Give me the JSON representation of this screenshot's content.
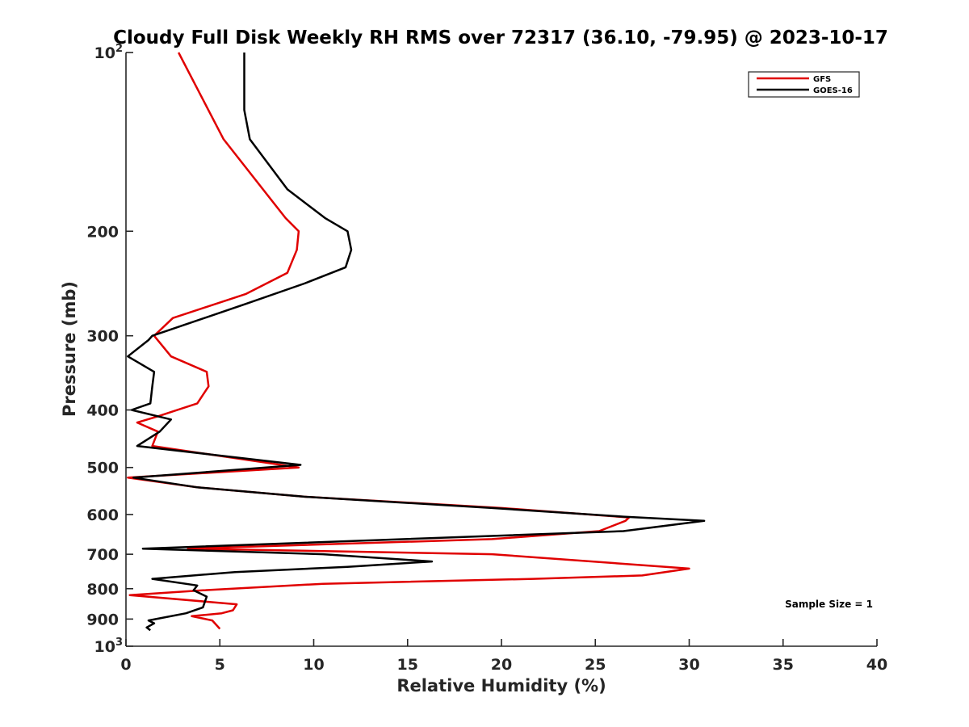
{
  "chart_data": {
    "type": "line",
    "title": "Cloudy Full Disk Weekly RH RMS over 72317 (36.10, -79.95) @ 2023-10-17",
    "xlabel": "Relative Humidity (%)",
    "ylabel": "Pressure (mb)",
    "xlim": [
      0,
      40
    ],
    "ylim": [
      100,
      1000
    ],
    "yscale": "log",
    "y_reversed": true,
    "grid": false,
    "legend_position": "top-right",
    "x_ticks": [
      0,
      5,
      10,
      15,
      20,
      25,
      30,
      35,
      40
    ],
    "x_tick_labels": [
      "0",
      "5",
      "10",
      "15",
      "20",
      "25",
      "30",
      "35",
      "40"
    ],
    "y_ticks": [
      {
        "value": 100,
        "base": "10",
        "exp": "2"
      },
      {
        "value": 200,
        "label": "200"
      },
      {
        "value": 300,
        "label": "300"
      },
      {
        "value": 400,
        "label": "400"
      },
      {
        "value": 500,
        "label": "500"
      },
      {
        "value": 600,
        "label": "600"
      },
      {
        "value": 700,
        "label": "700"
      },
      {
        "value": 800,
        "label": "800"
      },
      {
        "value": 900,
        "label": "900"
      },
      {
        "value": 1000,
        "base": "10",
        "exp": "3"
      }
    ],
    "series": [
      {
        "name": "GFS",
        "color": "#e00000",
        "points": [
          [
            2.8,
            100
          ],
          [
            4.1,
            120
          ],
          [
            5.2,
            140
          ],
          [
            8.5,
            190
          ],
          [
            9.2,
            200
          ],
          [
            9.1,
            215
          ],
          [
            8.6,
            235
          ],
          [
            6.4,
            255
          ],
          [
            2.5,
            280
          ],
          [
            1.5,
            300
          ],
          [
            2.4,
            325
          ],
          [
            4.3,
            345
          ],
          [
            4.4,
            365
          ],
          [
            3.8,
            390
          ],
          [
            1.7,
            410
          ],
          [
            0.6,
            420
          ],
          [
            1.7,
            435
          ],
          [
            1.4,
            460
          ],
          [
            9.2,
            500
          ],
          [
            0.1,
            520
          ],
          [
            3.8,
            540
          ],
          [
            9.5,
            560
          ],
          [
            20.0,
            585
          ],
          [
            26.8,
            607
          ],
          [
            26.6,
            615
          ],
          [
            25.2,
            640
          ],
          [
            19.5,
            660
          ],
          [
            3.3,
            685
          ],
          [
            19.5,
            700
          ],
          [
            30.0,
            740
          ],
          [
            27.5,
            760
          ],
          [
            21.7,
            770
          ],
          [
            10.5,
            785
          ],
          [
            4.1,
            805
          ],
          [
            0.2,
            820
          ],
          [
            5.9,
            850
          ],
          [
            5.7,
            870
          ],
          [
            5.1,
            880
          ],
          [
            3.5,
            890
          ],
          [
            4.6,
            905
          ],
          [
            5.0,
            935
          ]
        ]
      },
      {
        "name": "GOES-16",
        "color": "#000000",
        "points": [
          [
            6.3,
            100
          ],
          [
            6.3,
            125
          ],
          [
            6.6,
            140
          ],
          [
            8.6,
            170
          ],
          [
            10.6,
            190
          ],
          [
            11.8,
            200
          ],
          [
            12.0,
            215
          ],
          [
            11.7,
            230
          ],
          [
            9.5,
            245
          ],
          [
            6.4,
            265
          ],
          [
            1.4,
            300
          ],
          [
            1.2,
            305
          ],
          [
            0.1,
            325
          ],
          [
            1.5,
            345
          ],
          [
            1.4,
            365
          ],
          [
            1.3,
            390
          ],
          [
            0.3,
            400
          ],
          [
            2.4,
            415
          ],
          [
            1.8,
            435
          ],
          [
            0.6,
            460
          ],
          [
            9.3,
            495
          ],
          [
            0.4,
            520
          ],
          [
            3.8,
            540
          ],
          [
            9.5,
            560
          ],
          [
            19.5,
            585
          ],
          [
            26.5,
            605
          ],
          [
            30.8,
            615
          ],
          [
            26.5,
            640
          ],
          [
            0.9,
            685
          ],
          [
            10.5,
            700
          ],
          [
            16.3,
            720
          ],
          [
            11.8,
            735
          ],
          [
            5.8,
            750
          ],
          [
            1.4,
            770
          ],
          [
            3.8,
            790
          ],
          [
            3.6,
            805
          ],
          [
            4.3,
            825
          ],
          [
            4.1,
            860
          ],
          [
            3.2,
            880
          ],
          [
            1.2,
            905
          ],
          [
            1.5,
            915
          ],
          [
            1.1,
            930
          ],
          [
            1.3,
            940
          ]
        ]
      }
    ],
    "annotations": [
      {
        "text": "Sample Size = 1",
        "x": 35.1,
        "y": 860
      }
    ]
  }
}
